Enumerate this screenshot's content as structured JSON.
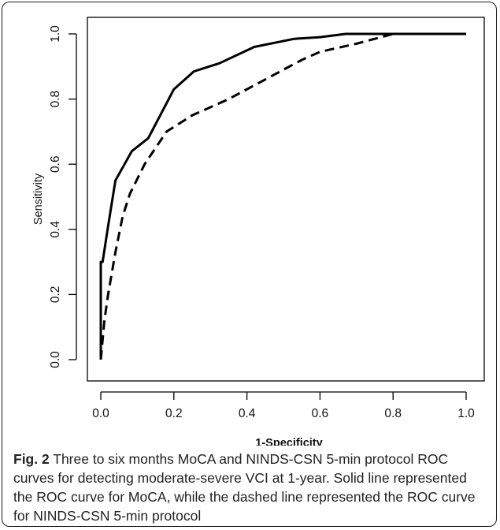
{
  "figure": {
    "label": "Fig. 2",
    "caption": "Three to six months MoCA and NINDS-CSN 5-min protocol ROC curves for detecting moderate-severe VCI at 1-year. Solid line represented the ROC curve for MoCA, while the dashed line represented the ROC curve for NINDS-CSN 5-min protocol"
  },
  "chart_data": {
    "type": "line",
    "title": "",
    "xlabel": "1-Specificity",
    "ylabel": "Sensitivity",
    "xlim": [
      0,
      1
    ],
    "ylim": [
      0,
      1
    ],
    "xticks": [
      "0.0",
      "0.2",
      "0.4",
      "0.6",
      "0.8",
      "1.0"
    ],
    "yticks": [
      "0.0",
      "0.2",
      "0.4",
      "0.6",
      "0.8",
      "1.0"
    ],
    "grid": false,
    "legend": "none",
    "series": [
      {
        "style": "solid",
        "color": "#000000",
        "x": [
          0.0,
          0.0,
          0.005,
          0.02,
          0.04,
          0.085,
          0.13,
          0.2,
          0.255,
          0.325,
          0.42,
          0.53,
          0.6,
          0.67,
          0.8,
          1.0
        ],
        "y": [
          0.0,
          0.3,
          0.3,
          0.41,
          0.55,
          0.64,
          0.68,
          0.83,
          0.885,
          0.91,
          0.96,
          0.985,
          0.99,
          1.0,
          1.0,
          1.0
        ]
      },
      {
        "style": "dashed",
        "color": "#000000",
        "x": [
          0.0,
          0.01,
          0.02,
          0.04,
          0.06,
          0.08,
          0.12,
          0.18,
          0.25,
          0.35,
          0.45,
          0.55,
          0.6,
          0.7,
          0.8,
          1.0
        ],
        "y": [
          0.0,
          0.12,
          0.2,
          0.33,
          0.44,
          0.51,
          0.6,
          0.7,
          0.75,
          0.8,
          0.86,
          0.92,
          0.945,
          0.97,
          1.0,
          1.0
        ]
      }
    ]
  }
}
